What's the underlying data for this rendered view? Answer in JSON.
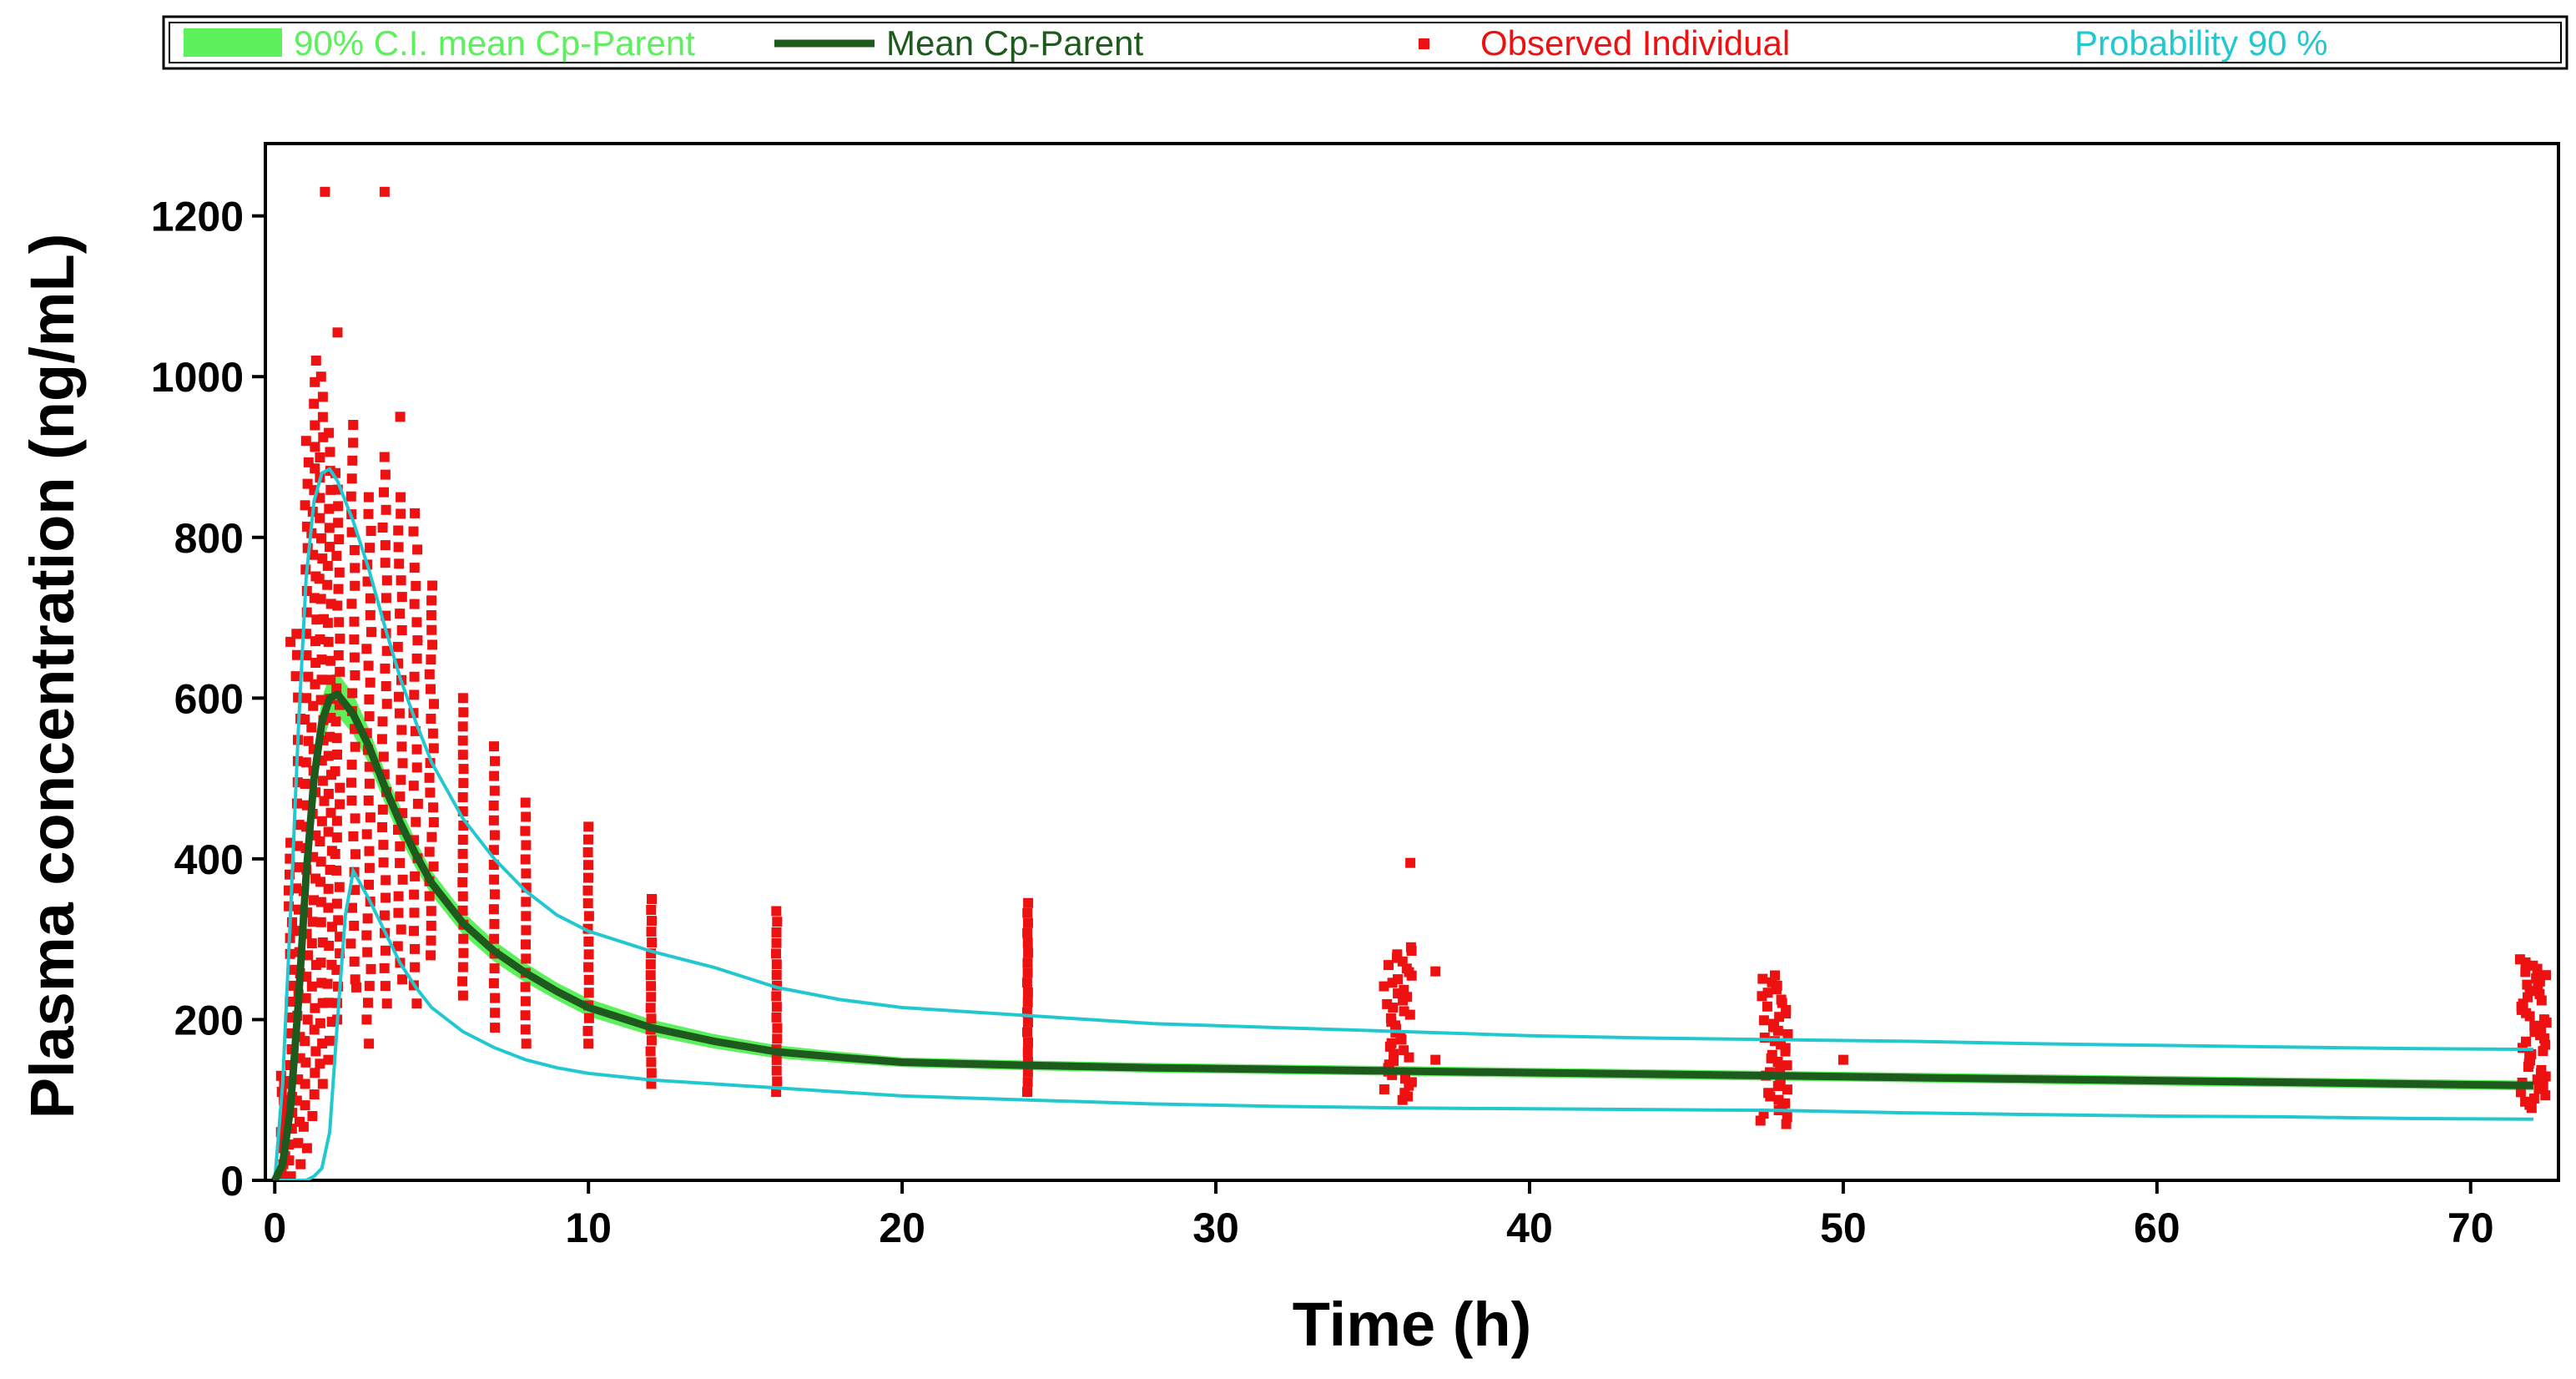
{
  "colors": {
    "ci_fill": "#5cf05c",
    "mean_line": "#1e5a1e",
    "observed": "#ee1111",
    "probability": "#22c8d0",
    "axis": "#000000",
    "background": "#ffffff"
  },
  "legend": {
    "ci_label": "90% C.I. mean Cp-Parent",
    "mean_label": "Mean Cp-Parent",
    "observed_label": "Observed Individual",
    "probability_label": "Probability 90 %"
  },
  "chart_data": {
    "type": "scatter",
    "title": "",
    "xlabel": "Time (h)",
    "ylabel": "Plasma concentration (ng/mL)",
    "xlim": [
      -0.3,
      72.8
    ],
    "ylim": [
      0,
      1290
    ],
    "x_ticks": [
      0,
      10,
      20,
      30,
      40,
      50,
      60,
      70
    ],
    "y_ticks": [
      0,
      200,
      400,
      600,
      800,
      1000,
      1200
    ],
    "grid": false,
    "legend_position": "top",
    "series": [
      {
        "name": "Mean Cp-Parent",
        "kind": "line",
        "x": [
          0,
          0.25,
          0.5,
          0.75,
          1,
          1.25,
          1.5,
          1.75,
          2,
          2.5,
          3,
          3.5,
          4,
          4.5,
          5,
          6,
          7,
          8,
          9,
          10,
          12,
          14,
          16,
          18,
          20,
          24,
          28,
          32,
          36,
          40,
          44,
          48,
          52,
          56,
          60,
          64,
          68,
          72
        ],
        "y": [
          0,
          20,
          90,
          220,
          380,
          500,
          570,
          600,
          605,
          580,
          540,
          490,
          445,
          405,
          370,
          320,
          285,
          258,
          235,
          215,
          190,
          173,
          160,
          153,
          147,
          143,
          140,
          138,
          136,
          134,
          132,
          130,
          128,
          126,
          124,
          122,
          120,
          118
        ]
      },
      {
        "name": "90% C.I. mean Cp-Parent",
        "kind": "band",
        "x": [
          0,
          0.25,
          0.5,
          0.75,
          1,
          1.25,
          1.5,
          1.75,
          2,
          2.5,
          3,
          3.5,
          4,
          4.5,
          5,
          6,
          7,
          8,
          9,
          10,
          12,
          14,
          16,
          18,
          20,
          24,
          28,
          32,
          36,
          40,
          44,
          48,
          52,
          56,
          60,
          64,
          68,
          72
        ],
        "lower": [
          0,
          10,
          70,
          195,
          350,
          470,
          540,
          572,
          578,
          555,
          518,
          470,
          425,
          388,
          355,
          306,
          272,
          246,
          224,
          204,
          180,
          164,
          152,
          146,
          141,
          137,
          134,
          132,
          130,
          128,
          126,
          124,
          122,
          120,
          118,
          116,
          114,
          112
        ],
        "upper": [
          0,
          30,
          110,
          245,
          410,
          530,
          600,
          628,
          632,
          605,
          562,
          510,
          465,
          422,
          385,
          334,
          298,
          270,
          246,
          226,
          200,
          182,
          168,
          160,
          153,
          149,
          146,
          144,
          142,
          140,
          138,
          136,
          134,
          132,
          130,
          128,
          126,
          124
        ]
      },
      {
        "name": "Probability 90 % (upper)",
        "kind": "line",
        "x": [
          0,
          0.25,
          0.5,
          0.75,
          1,
          1.25,
          1.5,
          1.75,
          2,
          2.5,
          3,
          3.5,
          4,
          4.5,
          5,
          6,
          7,
          8,
          9,
          10,
          12,
          14,
          16,
          18,
          20,
          24,
          28,
          32,
          36,
          40,
          44,
          48,
          52,
          56,
          60,
          64,
          68,
          72
        ],
        "y": [
          0,
          120,
          330,
          560,
          750,
          845,
          880,
          885,
          870,
          820,
          760,
          690,
          625,
          570,
          520,
          450,
          400,
          360,
          330,
          310,
          285,
          265,
          240,
          225,
          215,
          205,
          195,
          190,
          185,
          180,
          177,
          175,
          173,
          170,
          168,
          166,
          164,
          163
        ]
      },
      {
        "name": "Probability 90 % (lower)",
        "kind": "line",
        "x": [
          0,
          0.5,
          1,
          1.25,
          1.5,
          1.75,
          2,
          2.25,
          2.5,
          3,
          3.5,
          4,
          4.5,
          5,
          6,
          7,
          8,
          9,
          10,
          12,
          14,
          16,
          18,
          20,
          24,
          28,
          32,
          36,
          40,
          44,
          48,
          52,
          56,
          60,
          64,
          68,
          72
        ],
        "y": [
          0,
          0,
          0,
          5,
          15,
          60,
          200,
          330,
          385,
          350,
          310,
          270,
          240,
          215,
          185,
          165,
          150,
          140,
          133,
          125,
          120,
          115,
          110,
          105,
          100,
          95,
          92,
          90,
          89,
          88,
          87,
          84,
          82,
          80,
          79,
          77,
          76
        ]
      },
      {
        "name": "Observed Individual",
        "kind": "scatter",
        "clusters": [
          {
            "x": 0.25,
            "ymin": 0,
            "ymax": 130,
            "n": 14
          },
          {
            "x": 0.5,
            "ymin": 5,
            "ymax": 420,
            "n": 22
          },
          {
            "x": 0.75,
            "ymin": 20,
            "ymax": 680,
            "n": 26
          },
          {
            "x": 1,
            "ymin": 40,
            "ymax": 920,
            "n": 34
          },
          {
            "x": 1.25,
            "ymin": 80,
            "ymax": 1020,
            "n": 36
          },
          {
            "x": 1.5,
            "ymin": 120,
            "ymax": 1000,
            "n": 36
          },
          {
            "x": 1.75,
            "ymin": 150,
            "ymax": 930,
            "n": 34
          },
          {
            "x": 2,
            "ymin": 200,
            "ymax": 880,
            "n": 34
          },
          {
            "x": 2.5,
            "ymin": 250,
            "ymax": 940,
            "n": 32
          },
          {
            "x": 3,
            "ymin": 200,
            "ymax": 850,
            "n": 32
          },
          {
            "x": 3.5,
            "ymin": 220,
            "ymax": 900,
            "n": 32
          },
          {
            "x": 4,
            "ymin": 250,
            "ymax": 850,
            "n": 30
          },
          {
            "x": 4.5,
            "ymin": 220,
            "ymax": 830,
            "n": 28
          },
          {
            "x": 5,
            "ymin": 280,
            "ymax": 740,
            "n": 26
          },
          {
            "x": 6,
            "ymin": 230,
            "ymax": 600,
            "n": 22
          },
          {
            "x": 7,
            "ymin": 190,
            "ymax": 540,
            "n": 20
          },
          {
            "x": 8,
            "ymin": 170,
            "ymax": 470,
            "n": 18
          },
          {
            "x": 10,
            "ymin": 170,
            "ymax": 440,
            "n": 18
          },
          {
            "x": 12,
            "ymin": 120,
            "ymax": 350,
            "n": 18
          },
          {
            "x": 16,
            "ymin": 110,
            "ymax": 335,
            "n": 18
          },
          {
            "x": 24,
            "ymin": 110,
            "ymax": 345,
            "n": 20
          },
          {
            "x": 35.8,
            "ymin": 100,
            "ymax": 290,
            "n": 44
          },
          {
            "x": 47.8,
            "ymin": 70,
            "ymax": 255,
            "n": 44
          },
          {
            "x": 72,
            "ymin": 90,
            "ymax": 275,
            "n": 48
          }
        ],
        "extra_points": [
          {
            "x": 1.6,
            "y": 1230
          },
          {
            "x": 3.5,
            "y": 1230
          },
          {
            "x": 2.0,
            "y": 1055
          },
          {
            "x": 4.0,
            "y": 950
          },
          {
            "x": 36.2,
            "y": 395
          },
          {
            "x": 37.0,
            "y": 260
          },
          {
            "x": 50.0,
            "y": 150
          },
          {
            "x": 37.0,
            "y": 150
          },
          {
            "x": 0.5,
            "y": 670
          },
          {
            "x": 1.0,
            "y": 680
          },
          {
            "x": 2.6,
            "y": 240
          },
          {
            "x": 3.0,
            "y": 170
          }
        ]
      }
    ]
  }
}
